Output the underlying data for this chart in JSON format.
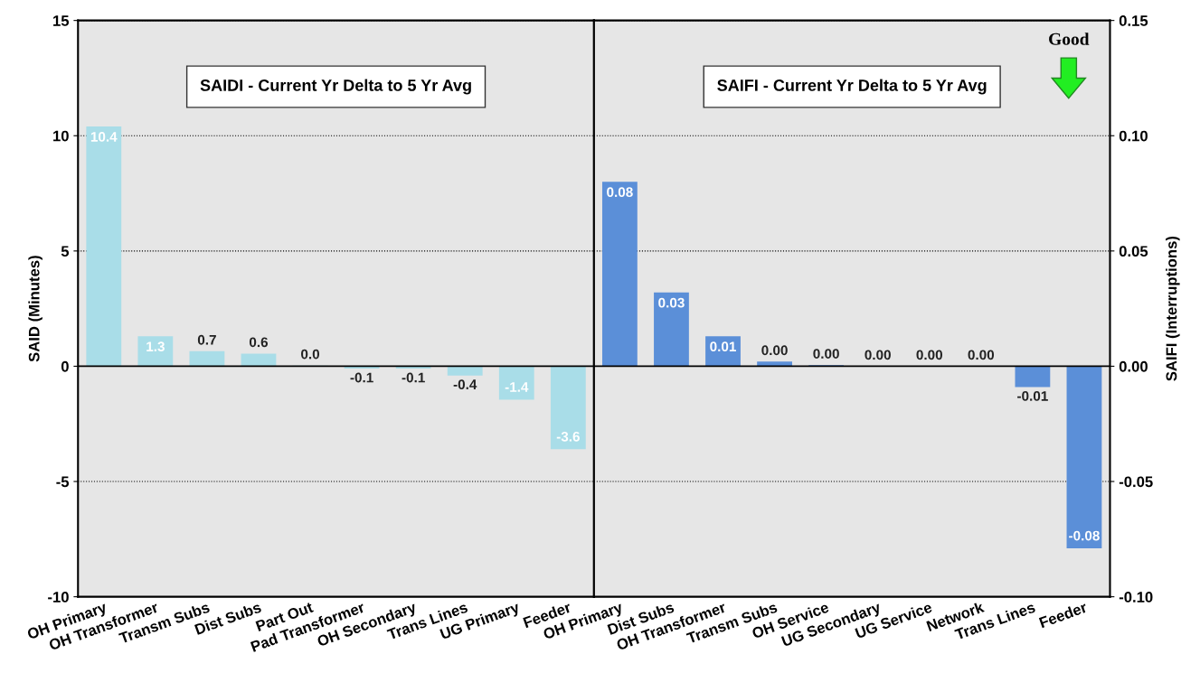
{
  "chart_data": [
    {
      "type": "bar",
      "ylabel": "SAID (Minutes)",
      "categories": [
        "OH Primary",
        "OH Transformer",
        "Transm Subs",
        "Dist Subs",
        "Part Out",
        "Pad Transformer",
        "OH Secondary",
        "Trans Lines",
        "UG Primary",
        "Feeder"
      ],
      "series": [
        {
          "color": "#a9dde8",
          "values": [
            10.4,
            1.3,
            0.65,
            0.55,
            0.03,
            -0.1,
            -0.1,
            -0.4,
            -1.45,
            -3.6
          ],
          "value_labels": [
            "10.4",
            "1.3",
            "0.7",
            "0.6",
            "0.0",
            "-0.1",
            "-0.1",
            "-0.4",
            "-1.4",
            "-3.6"
          ]
        }
      ],
      "ylim": [
        -10,
        15
      ],
      "yticks": [
        -10,
        -5,
        0,
        5,
        10,
        15
      ],
      "grid": "y",
      "ref_lines": [
        {
          "axis": "y",
          "value": 0,
          "color": "#000000",
          "line_style": "solid"
        }
      ],
      "annotations": [
        "SAIDI - Current Yr Delta to 5 Yr Avg"
      ]
    },
    {
      "type": "bar",
      "y2label": "SAIFI (Interruptions)",
      "categories": [
        "OH Primary",
        "Dist Subs",
        "OH Transformer",
        "Transm Subs",
        "OH Service",
        "UG Secondary",
        "UG Service",
        "Network",
        "Trans Lines",
        "Feeder"
      ],
      "series": [
        {
          "color": "#5b8fd8",
          "axis": "y2",
          "values": [
            0.08,
            0.032,
            0.013,
            0.002,
            0.0005,
            0,
            0,
            0,
            -0.009,
            -0.079
          ],
          "value_labels": [
            "0.08",
            "0.03",
            "0.01",
            "0.00",
            "0.00",
            "0.00",
            "0.00",
            "0.00",
            "-0.01",
            "-0.08"
          ]
        }
      ],
      "y2lim": [
        -0.1,
        0.15
      ],
      "y2ticks": [
        {
          "value": -0.1,
          "label": "-0.10"
        },
        {
          "value": -0.05,
          "label": "-0.05"
        },
        {
          "value": 0,
          "label": "0.00"
        },
        {
          "value": 0.05,
          "label": "0.05"
        },
        {
          "value": 0.1,
          "label": "0.10"
        },
        {
          "value": 0.15,
          "label": "0.15"
        }
      ],
      "grid": "y",
      "ref_lines": [
        {
          "axis": "y2",
          "value": 0,
          "color": "#000000",
          "line_style": "solid"
        }
      ],
      "annotations": [
        "SAIFI - Current Yr Delta to 5 Yr Avg",
        "Good"
      ]
    }
  ]
}
